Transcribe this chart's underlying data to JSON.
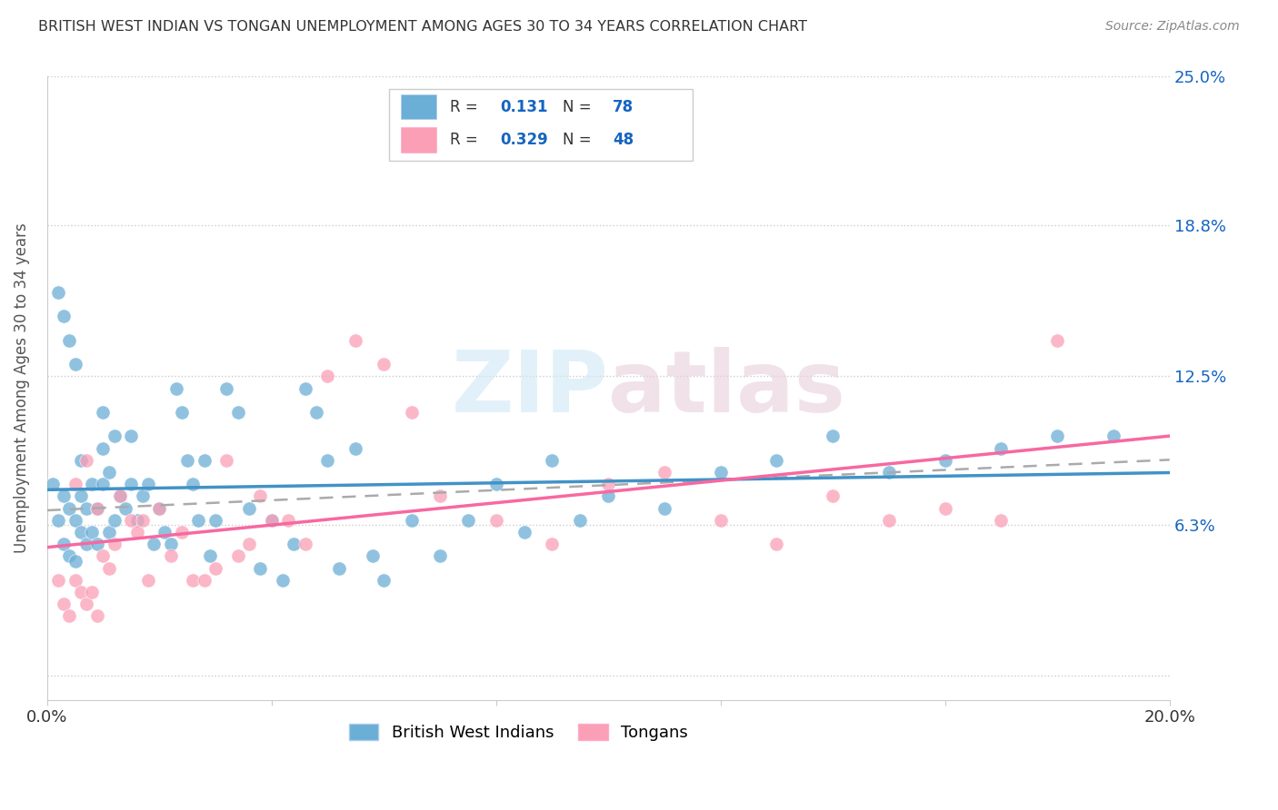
{
  "title": "BRITISH WEST INDIAN VS TONGAN UNEMPLOYMENT AMONG AGES 30 TO 34 YEARS CORRELATION CHART",
  "source": "Source: ZipAtlas.com",
  "ylabel": "Unemployment Among Ages 30 to 34 years",
  "xlim": [
    0.0,
    0.2
  ],
  "ylim": [
    -0.01,
    0.25
  ],
  "bwi_color": "#6baed6",
  "tongan_color": "#fa9fb5",
  "bwi_line_color": "#4292c6",
  "tongan_line_color": "#f768a1",
  "gray_dash_color": "#aaaaaa",
  "legend_text_color": "#333333",
  "legend_val_color": "#1565c0",
  "bwi_R": 0.131,
  "bwi_N": 78,
  "tongan_R": 0.329,
  "tongan_N": 48,
  "watermark": "ZIPatlas",
  "grid_color": "#cccccc",
  "bg_color": "#ffffff",
  "bwi_x": [
    0.001,
    0.002,
    0.003,
    0.003,
    0.004,
    0.004,
    0.005,
    0.005,
    0.006,
    0.006,
    0.006,
    0.007,
    0.007,
    0.008,
    0.008,
    0.009,
    0.009,
    0.01,
    0.01,
    0.01,
    0.011,
    0.011,
    0.012,
    0.012,
    0.013,
    0.014,
    0.015,
    0.015,
    0.016,
    0.017,
    0.018,
    0.019,
    0.02,
    0.021,
    0.022,
    0.023,
    0.024,
    0.025,
    0.026,
    0.027,
    0.028,
    0.029,
    0.03,
    0.032,
    0.034,
    0.036,
    0.038,
    0.04,
    0.042,
    0.044,
    0.046,
    0.048,
    0.05,
    0.052,
    0.055,
    0.058,
    0.06,
    0.065,
    0.07,
    0.075,
    0.08,
    0.085,
    0.09,
    0.095,
    0.1,
    0.11,
    0.12,
    0.13,
    0.14,
    0.15,
    0.16,
    0.17,
    0.18,
    0.19,
    0.002,
    0.003,
    0.004,
    0.005
  ],
  "bwi_y": [
    0.08,
    0.065,
    0.055,
    0.075,
    0.05,
    0.07,
    0.048,
    0.065,
    0.06,
    0.075,
    0.09,
    0.055,
    0.07,
    0.06,
    0.08,
    0.055,
    0.07,
    0.08,
    0.095,
    0.11,
    0.06,
    0.085,
    0.065,
    0.1,
    0.075,
    0.07,
    0.08,
    0.1,
    0.065,
    0.075,
    0.08,
    0.055,
    0.07,
    0.06,
    0.055,
    0.12,
    0.11,
    0.09,
    0.08,
    0.065,
    0.09,
    0.05,
    0.065,
    0.12,
    0.11,
    0.07,
    0.045,
    0.065,
    0.04,
    0.055,
    0.12,
    0.11,
    0.09,
    0.045,
    0.095,
    0.05,
    0.04,
    0.065,
    0.05,
    0.065,
    0.08,
    0.06,
    0.09,
    0.065,
    0.075,
    0.07,
    0.085,
    0.09,
    0.1,
    0.085,
    0.09,
    0.095,
    0.1,
    0.1,
    0.16,
    0.15,
    0.14,
    0.13
  ],
  "tongan_x": [
    0.002,
    0.003,
    0.004,
    0.005,
    0.006,
    0.007,
    0.008,
    0.009,
    0.01,
    0.011,
    0.012,
    0.013,
    0.015,
    0.016,
    0.017,
    0.018,
    0.02,
    0.022,
    0.024,
    0.026,
    0.028,
    0.03,
    0.032,
    0.034,
    0.036,
    0.038,
    0.04,
    0.043,
    0.046,
    0.05,
    0.055,
    0.06,
    0.065,
    0.07,
    0.08,
    0.09,
    0.1,
    0.11,
    0.12,
    0.13,
    0.14,
    0.15,
    0.16,
    0.17,
    0.18,
    0.005,
    0.007,
    0.009
  ],
  "tongan_y": [
    0.04,
    0.03,
    0.025,
    0.04,
    0.035,
    0.03,
    0.035,
    0.025,
    0.05,
    0.045,
    0.055,
    0.075,
    0.065,
    0.06,
    0.065,
    0.04,
    0.07,
    0.05,
    0.06,
    0.04,
    0.04,
    0.045,
    0.09,
    0.05,
    0.055,
    0.075,
    0.065,
    0.065,
    0.055,
    0.125,
    0.14,
    0.13,
    0.11,
    0.075,
    0.065,
    0.055,
    0.08,
    0.085,
    0.065,
    0.055,
    0.075,
    0.065,
    0.07,
    0.065,
    0.14,
    0.08,
    0.09,
    0.07
  ]
}
